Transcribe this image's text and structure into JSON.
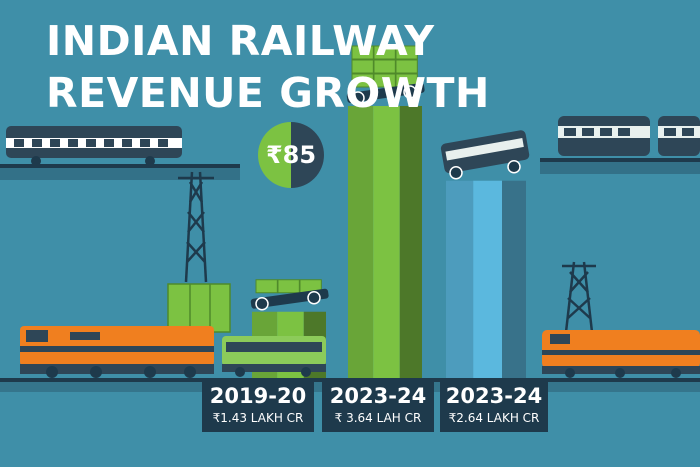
{
  "title_line1": "INDIAN RAILWAY",
  "title_line2": "REVENUE GROWTH",
  "badge_text": "₹85",
  "colors": {
    "background": "#3f8fa8",
    "green_bar": "#7cc242",
    "blue_bar": "#5bb8de",
    "orange_train": "#f07f1f",
    "label_bg": "#1e3a4c"
  },
  "chart_data": {
    "type": "bar",
    "title": "INDIAN RAILWAY REVENUE GROWTH",
    "categories": [
      "2019-20",
      "2023-24",
      "2023-24"
    ],
    "value_labels": [
      "₹1.43 LAKH CR",
      "₹ 3.64 LAH CR",
      "₹2.64 LAKH CR"
    ],
    "values": [
      1.43,
      3.64,
      2.64
    ],
    "units": "LAKH CR",
    "bar_colors": [
      "#7cc242",
      "#7cc242",
      "#5bb8de"
    ],
    "ylim": [
      0,
      3.64
    ],
    "grid": false,
    "legend": "none"
  }
}
